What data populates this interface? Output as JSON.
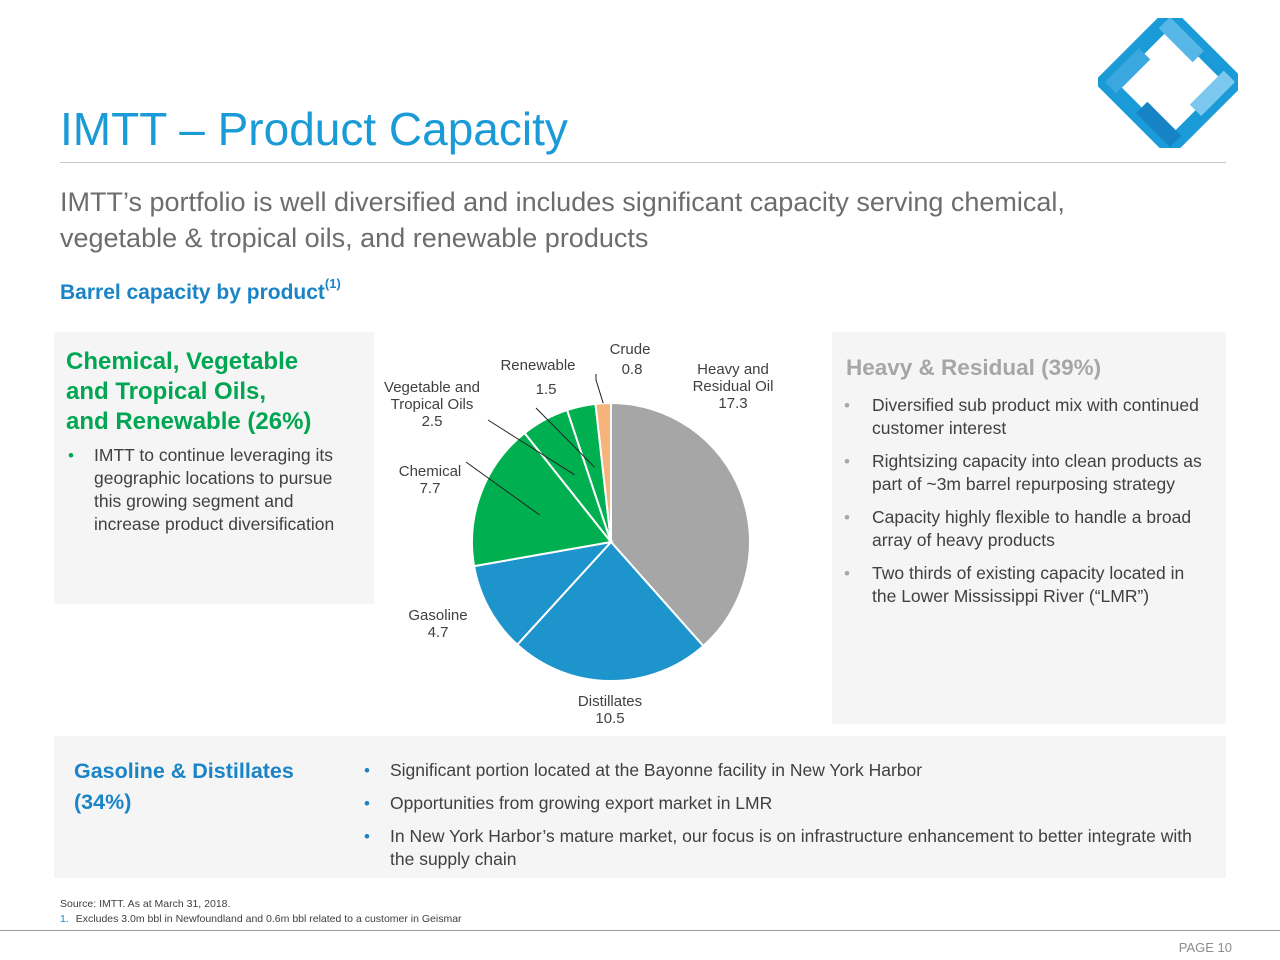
{
  "header": {
    "title": "IMTT – Product Capacity",
    "subtitle": "IMTT’s portfolio is well diversified and includes significant capacity serving chemical, vegetable & tropical oils, and renewable products",
    "section_title": "Barrel capacity by product",
    "section_title_note": "(1)"
  },
  "chemical_panel": {
    "heading": "Chemical, Vegetable\nand Tropical Oils,\nand Renewable (26%)",
    "bullet": "IMTT to continue leveraging its geographic locations to pursue this growing segment and increase product diversification"
  },
  "heavy_panel": {
    "heading": "Heavy & Residual (39%)",
    "bullets": [
      "Diversified sub product mix with continued customer interest",
      "Rightsizing capacity into clean products as part of ~3m barrel repurposing strategy",
      "Capacity highly flexible to handle a broad array of heavy products",
      "Two thirds of existing capacity located in the Lower Mississippi River (“LMR”)"
    ]
  },
  "gasoline_panel": {
    "heading": "Gasoline & Distillates\n(34%)",
    "bullets": [
      "Significant portion located at the Bayonne facility in New York Harbor",
      "Opportunities from growing export market in LMR",
      "In New York Harbor’s mature market, our focus is on infrastructure enhancement to better integrate with the supply chain"
    ]
  },
  "footer": {
    "source": "Source: IMTT. As at March 31, 2018.",
    "footnote_number": "1.",
    "footnote_text": "Excludes 3.0m bbl in Newfoundland and 0.6m bbl related to a customer in Geismar",
    "page_label": "PAGE 10"
  },
  "colors": {
    "title_blue": "#1a9bd7",
    "green": "#00a651",
    "blue": "#1e94cc",
    "gray": "#a6a6a6",
    "orange": "#f7b47a"
  },
  "chart_data": {
    "type": "pie",
    "start_angle_deg": 0,
    "direction": "clockwise",
    "slices": [
      {
        "name": "Heavy and Residual Oil",
        "label_lines": [
          "Heavy and",
          "Residual Oil"
        ],
        "value": 17.3,
        "value_label": "17.3",
        "color": "#a6a6a6"
      },
      {
        "name": "Distillates",
        "label_lines": [
          "Distillates"
        ],
        "value": 10.5,
        "value_label": "10.5",
        "color": "#1e94cc"
      },
      {
        "name": "Gasoline",
        "label_lines": [
          "Gasoline"
        ],
        "value": 4.7,
        "value_label": "4.7",
        "color": "#1e94cc"
      },
      {
        "name": "Chemical",
        "label_lines": [
          "Chemical"
        ],
        "value": 7.7,
        "value_label": "7.7",
        "color": "#00b050"
      },
      {
        "name": "Vegetable and Tropical Oils",
        "label_lines": [
          "Vegetable and",
          "Tropical Oils"
        ],
        "value": 2.5,
        "value_label": "2.5",
        "color": "#00b050"
      },
      {
        "name": "Renewable",
        "label_lines": [
          "Renewable"
        ],
        "value": 1.5,
        "value_label": "1.5",
        "color": "#00b050"
      },
      {
        "name": "Crude",
        "label_lines": [
          "Crude"
        ],
        "value": 0.8,
        "value_label": "0.8",
        "color": "#f7b47a"
      }
    ]
  }
}
